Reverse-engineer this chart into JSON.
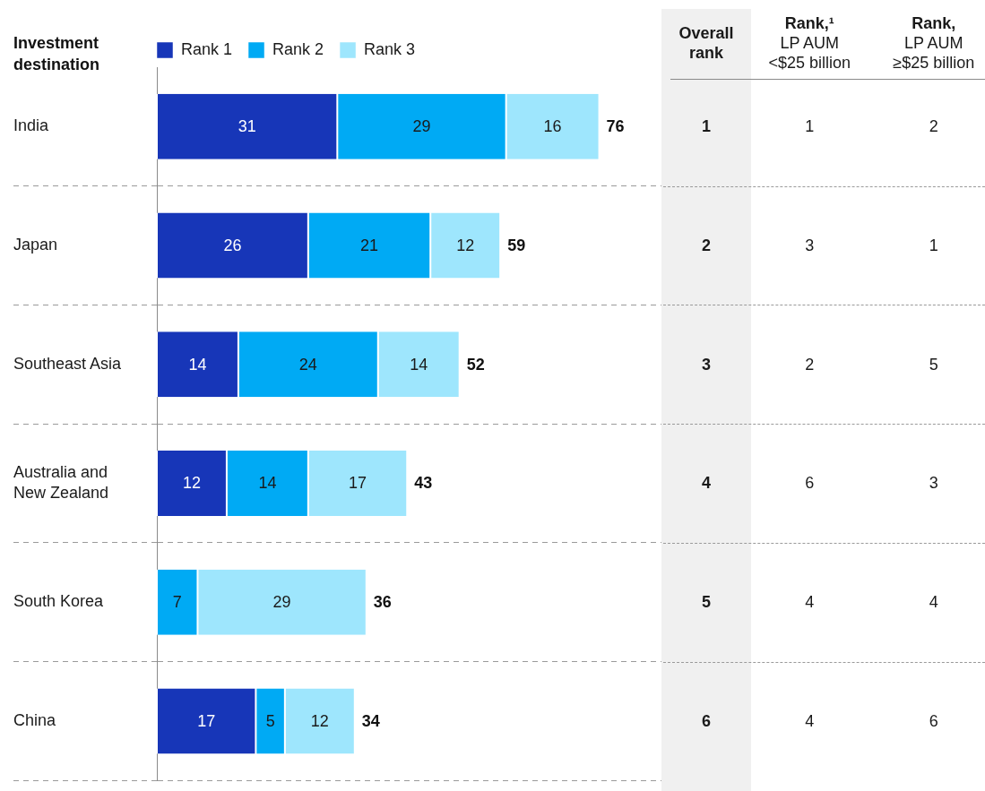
{
  "chart_data": [
    {
      "type": "bar",
      "orientation": "horizontal",
      "stacked": true,
      "ylabel": "Investment destination",
      "categories": [
        "India",
        "Japan",
        "Southeast Asia",
        "Australia and New Zealand",
        "South Korea",
        "China"
      ],
      "series": [
        {
          "name": "Rank 1",
          "color": "#1736b8",
          "values": [
            31,
            26,
            14,
            12,
            null,
            17
          ]
        },
        {
          "name": "Rank 2",
          "color": "#00aaf4",
          "values": [
            29,
            21,
            24,
            14,
            7,
            5
          ]
        },
        {
          "name": "Rank 3",
          "color": "#9ee6fd",
          "values": [
            16,
            12,
            14,
            17,
            29,
            12
          ]
        }
      ],
      "totals": [
        "76",
        "59",
        "52",
        "43",
        "36",
        "34"
      ],
      "data_labels": true,
      "xlim": [
        0,
        87
      ],
      "legend": "top left",
      "grid": "y"
    },
    {
      "type": "heatmap",
      "categories": [
        "Overall rank",
        "Rank,¹ LP AUM <$25 billion",
        "Rank, LP AUM ≥$25 billion"
      ],
      "y_categories": [
        "India",
        "Japan",
        "Southeast Asia",
        "Australia and New Zealand",
        "South Korea",
        "China"
      ],
      "tick_labels": "x",
      "cells": [
        [
          1,
          1,
          2
        ],
        [
          2,
          3,
          1
        ],
        [
          3,
          2,
          5
        ],
        [
          4,
          6,
          3
        ],
        [
          5,
          4,
          4
        ],
        [
          6,
          4,
          6
        ]
      ],
      "data_labels": true
    }
  ]
}
